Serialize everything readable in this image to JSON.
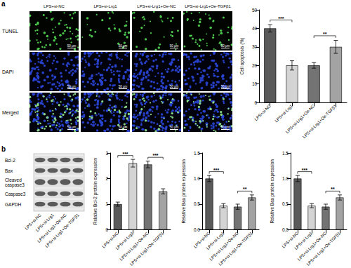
{
  "panel_labels": [
    "a",
    "b"
  ],
  "microscopy": {
    "groups": [
      "LPS+si-NC",
      "LPS+si-Lrg1",
      "LPS+si-Lrg1+Oe-NC",
      "LPS+si-Lrg1+Oe-TGFβ1"
    ],
    "rows": [
      "TUNEL",
      "DAPI",
      "Merged"
    ],
    "scale_bar": "50 μm"
  },
  "blot": {
    "bands": [
      "Bcl-2",
      "Bax",
      "Cleaved caspase3",
      "Caspase3",
      "GAPDH"
    ],
    "lanes": [
      "LPS+si-NC",
      "LPS+si-Lrg1",
      "LPS+si-Lrg1+Oe-NC",
      "LPS+si-Lrg1+Oe-TGFβ1"
    ]
  },
  "chart_data": [
    {
      "type": "bar",
      "ylabel": "Cell apoptosis (%)",
      "categories": [
        "LPS+si-NC",
        "LPS+si-Lrg1",
        "LPS+si-Lrg1+Oe-NC",
        "LPS+si-Lrg1+Oe-TGFβ1"
      ],
      "values": [
        40,
        20,
        20,
        30
      ],
      "errors": [
        2,
        2.5,
        1.5,
        3.5
      ],
      "colors": [
        "#5a5a5a",
        "#d4d4d4",
        "#737373",
        "#a3a3a3"
      ],
      "ylim": [
        0,
        50
      ],
      "yticks": [
        0,
        10,
        20,
        30,
        40,
        50
      ],
      "grid": false,
      "annotations": [
        {
          "text": "***",
          "between": [
            "LPS+si-NC",
            "LPS+si-Lrg1"
          ]
        },
        {
          "text": "**",
          "between": [
            "LPS+si-Lrg1+Oe-NC",
            "LPS+si-Lrg1+Oe-TGFβ1"
          ]
        }
      ]
    },
    {
      "type": "bar",
      "ylabel": "Relative Bcl-2 protein expression",
      "categories": [
        "LPS+si-NC",
        "LPS+si-Lrg1",
        "LPS+si-Lrg1+Oe-NC",
        "LPS+si-Lrg1+Oe-TGFβ1"
      ],
      "values": [
        1.0,
        2.6,
        2.55,
        1.5
      ],
      "errors": [
        0.08,
        0.15,
        0.13,
        0.1
      ],
      "colors": [
        "#5a5a5a",
        "#d4d4d4",
        "#737373",
        "#a3a3a3"
      ],
      "ylim": [
        0,
        3
      ],
      "yticks": [
        0,
        1,
        2,
        3
      ],
      "grid": false,
      "annotations": [
        {
          "text": "***",
          "between": [
            "LPS+si-NC",
            "LPS+si-Lrg1"
          ]
        },
        {
          "text": "***",
          "between": [
            "LPS+si-Lrg1+Oe-NC",
            "LPS+si-Lrg1+Oe-TGFβ1"
          ]
        }
      ]
    },
    {
      "type": "bar",
      "ylabel": "Relative Bax protein expression",
      "categories": [
        "LPS+si-NC",
        "LPS+si-Lrg1",
        "LPS+si-Lrg1+Oe-NC",
        "LPS+si-Lrg1+Oe-TGFβ1"
      ],
      "values": [
        1.0,
        0.47,
        0.45,
        0.63
      ],
      "errors": [
        0.06,
        0.04,
        0.05,
        0.05
      ],
      "colors": [
        "#5a5a5a",
        "#d4d4d4",
        "#737373",
        "#a3a3a3"
      ],
      "ylim": [
        0,
        1.5
      ],
      "yticks": [
        {
          "value": 0,
          "label": "0.0"
        },
        0.5,
        {
          "value": 1,
          "label": "1.0"
        },
        1.5
      ],
      "grid": false,
      "annotations": [
        {
          "text": "***",
          "between": [
            "LPS+si-NC",
            "LPS+si-Lrg1"
          ]
        },
        {
          "text": "**",
          "between": [
            "LPS+si-Lrg1+Oe-NC",
            "LPS+si-Lrg1+Oe-TGFβ1"
          ]
        }
      ]
    },
    {
      "type": "bar",
      "ylabel": "Relative Bax protein expression",
      "categories": [
        "LPS+si-NC",
        "LPS+si-Lrg1",
        "LPS+si-Lrg1+Oe-NC",
        "LPS+si-Lrg1+Oe-TGFβ1"
      ],
      "values": [
        1.0,
        0.47,
        0.45,
        0.63
      ],
      "errors": [
        0.06,
        0.04,
        0.05,
        0.05
      ],
      "colors": [
        "#5a5a5a",
        "#d4d4d4",
        "#737373",
        "#a3a3a3"
      ],
      "ylim": [
        0,
        1.5
      ],
      "yticks": [
        {
          "value": 0,
          "label": "0.0"
        },
        0.5,
        {
          "value": 1,
          "label": "1.0"
        },
        1.5
      ],
      "grid": false,
      "annotations": [
        {
          "text": "***",
          "between": [
            "LPS+si-NC",
            "LPS+si-Lrg1"
          ]
        },
        {
          "text": "**",
          "between": [
            "LPS+si-Lrg1+Oe-NC",
            "LPS+si-Lrg1+Oe-TGFβ1"
          ]
        }
      ]
    }
  ]
}
